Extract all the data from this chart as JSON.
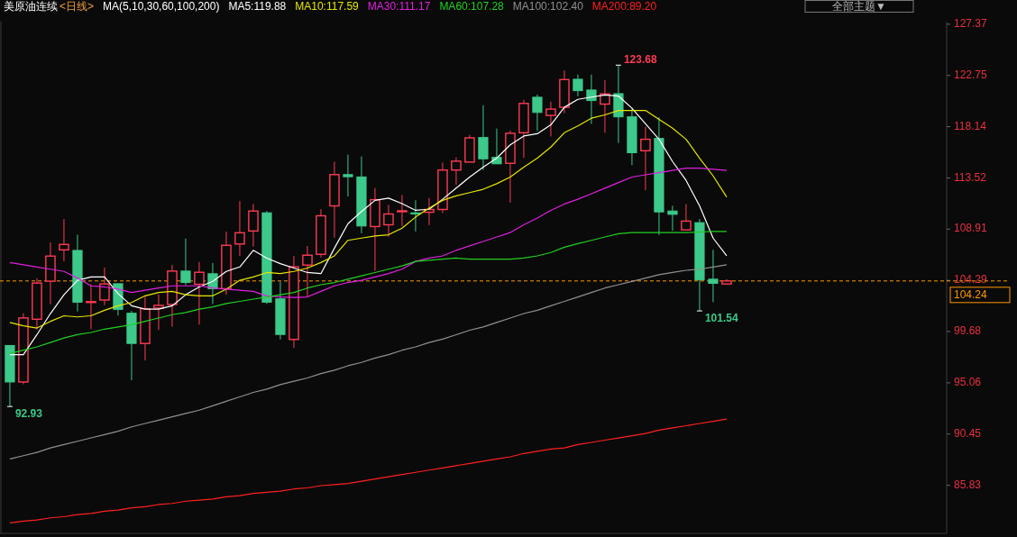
{
  "chart_data": {
    "type": "candlestick",
    "title": "美原油连续",
    "subtitle": "<日线>",
    "legend_title": "MA(5,10,30,60,100,200)",
    "legend": "top",
    "categories": [
      null,
      null,
      null,
      null,
      null,
      null,
      null,
      null,
      null,
      null,
      null,
      null,
      null,
      null,
      null,
      null,
      null,
      null,
      null,
      null,
      null,
      null,
      null,
      null,
      null,
      null,
      null,
      null,
      null,
      null,
      null,
      null,
      null,
      null,
      null,
      null,
      null,
      null,
      null,
      null,
      null,
      null,
      null,
      null,
      null,
      null,
      null,
      null,
      null,
      null,
      null,
      null,
      null,
      null
    ],
    "ohlc": [
      [
        98.43,
        98.5,
        92.93,
        95.14
      ],
      [
        95.14,
        101.33,
        94.93,
        100.91
      ],
      [
        100.79,
        104.48,
        99.86,
        104.05
      ],
      [
        104.22,
        107.71,
        102.14,
        106.48
      ],
      [
        107.04,
        109.81,
        106.02,
        107.53
      ],
      [
        106.99,
        108.41,
        101.49,
        102.33
      ],
      [
        102.36,
        103.94,
        99.9,
        102.38
      ],
      [
        102.52,
        105.45,
        102.06,
        103.97
      ],
      [
        103.99,
        104.0,
        101.12,
        101.68
      ],
      [
        101.33,
        101.55,
        95.3,
        98.61
      ],
      [
        98.61,
        102.81,
        97.08,
        101.74
      ],
      [
        101.79,
        103.03,
        99.82,
        102.04
      ],
      [
        102.12,
        105.69,
        100.12,
        105.13
      ],
      [
        105.13,
        108.06,
        103.86,
        104.1
      ],
      [
        103.94,
        105.96,
        100.31,
        105.02
      ],
      [
        104.89,
        105.85,
        102.16,
        103.54
      ],
      [
        103.54,
        108.68,
        103.0,
        107.45
      ],
      [
        107.57,
        111.43,
        106.5,
        108.58
      ],
      [
        108.74,
        111.18,
        107.33,
        110.54
      ],
      [
        110.38,
        110.54,
        102.16,
        102.33
      ],
      [
        102.63,
        104.16,
        98.97,
        99.42
      ],
      [
        98.97,
        106.5,
        98.21,
        105.51
      ],
      [
        105.67,
        107.39,
        102.79,
        106.56
      ],
      [
        106.64,
        110.7,
        106.36,
        110.11
      ],
      [
        111.0,
        114.98,
        108.14,
        113.82
      ],
      [
        113.82,
        115.62,
        111.85,
        113.63
      ],
      [
        113.61,
        115.46,
        108.54,
        109.19
      ],
      [
        109.14,
        112.61,
        105.15,
        111.56
      ],
      [
        109.3,
        111.1,
        108.22,
        110.27
      ],
      [
        110.51,
        111.99,
        109.19,
        110.56
      ],
      [
        110.38,
        111.51,
        108.7,
        110.27
      ],
      [
        110.43,
        111.72,
        109.27,
        110.68
      ],
      [
        110.68,
        114.9,
        110.35,
        114.23
      ],
      [
        114.23,
        115.38,
        112.9,
        115.03
      ],
      [
        114.95,
        117.4,
        114.95,
        117.13
      ],
      [
        117.16,
        120.07,
        114.23,
        115.24
      ],
      [
        115.38,
        117.97,
        114.68,
        114.79
      ],
      [
        114.84,
        117.8,
        111.29,
        117.54
      ],
      [
        117.59,
        120.55,
        115.33,
        120.23
      ],
      [
        120.79,
        121.03,
        117.75,
        119.42
      ],
      [
        119.15,
        120.39,
        117.26,
        119.72
      ],
      [
        119.88,
        123.21,
        119.36,
        122.38
      ],
      [
        122.41,
        122.83,
        120.87,
        121.38
      ],
      [
        121.44,
        122.83,
        118.39,
        120.49
      ],
      [
        120.17,
        122.33,
        117.59,
        121.09
      ],
      [
        121.11,
        123.68,
        116.67,
        119.02
      ],
      [
        119.02,
        119.72,
        114.68,
        115.79
      ],
      [
        115.97,
        118.13,
        112.42,
        117.0
      ],
      [
        117.08,
        118.99,
        108.38,
        110.46
      ],
      [
        110.54,
        111.02,
        108.76,
        110.24
      ],
      [
        108.84,
        111.18,
        108.84,
        109.63
      ],
      [
        109.49,
        109.81,
        101.54,
        104.34
      ],
      [
        104.4,
        107.04,
        102.33,
        104.02
      ],
      [
        103.97,
        104.4,
        103.97,
        104.24
      ]
    ],
    "series": [
      {
        "name": "MA5:119.88",
        "type": "line",
        "color": "#ffffff",
        "values": [
          97.6,
          97.6,
          99.4,
          101.3,
          103.0,
          104.3,
          104.6,
          104.6,
          103.1,
          102.0,
          101.7,
          101.7,
          102.0,
          103.0,
          103.7,
          104.2,
          105.1,
          105.5,
          107.0,
          106.3,
          105.8,
          105.4,
          105.0,
          104.9,
          107.2,
          109.4,
          110.5,
          111.5,
          111.7,
          111.2,
          110.6,
          110.7,
          111.6,
          112.6,
          113.6,
          114.5,
          115.3,
          116.5,
          117.3,
          117.5,
          118.3,
          119.88,
          120.6,
          120.8,
          121.0,
          120.9,
          119.8,
          118.4,
          117.0,
          115.0,
          113.3,
          111.0,
          108.1,
          106.5
        ]
      },
      {
        "name": "MA10:117.59",
        "type": "line",
        "color": "#e6e600",
        "values": [
          100.5,
          100.2,
          100.0,
          100.6,
          101.1,
          101.0,
          101.1,
          101.6,
          102.0,
          102.3,
          102.9,
          103.2,
          103.3,
          103.0,
          102.9,
          102.9,
          103.5,
          104.3,
          104.6,
          105.0,
          104.9,
          105.1,
          105.4,
          105.9,
          106.5,
          107.9,
          108.1,
          108.3,
          108.4,
          109.0,
          110.0,
          110.8,
          111.5,
          111.9,
          112.2,
          112.5,
          113.0,
          113.6,
          114.5,
          115.3,
          116.3,
          117.59,
          118.2,
          118.9,
          119.2,
          119.6,
          119.6,
          119.6,
          118.8,
          118.0,
          117.0,
          115.3,
          113.7,
          111.8
        ]
      },
      {
        "name": "MA30:111.17",
        "type": "line",
        "color": "#e020e0",
        "values": [
          105.9,
          105.7,
          105.5,
          105.3,
          105.1,
          104.5,
          103.8,
          103.7,
          103.5,
          103.2,
          103.4,
          103.6,
          103.8,
          103.8,
          103.8,
          103.6,
          103.5,
          103.4,
          103.3,
          102.9,
          102.8,
          102.75,
          102.8,
          103.3,
          103.8,
          104.1,
          104.3,
          104.6,
          104.9,
          105.3,
          106.0,
          106.3,
          106.5,
          107.0,
          107.4,
          107.8,
          108.2,
          108.6,
          109.3,
          109.9,
          110.6,
          111.17,
          111.6,
          112.1,
          112.6,
          113.1,
          113.6,
          113.8,
          114.0,
          114.2,
          114.4,
          114.4,
          114.3,
          114.2
        ]
      },
      {
        "name": "MA60:107.28",
        "type": "line",
        "color": "#20d020",
        "values": [
          97.7,
          98.0,
          98.3,
          98.7,
          99.1,
          99.4,
          99.6,
          99.9,
          100.1,
          100.3,
          100.6,
          100.9,
          101.2,
          101.4,
          101.7,
          101.9,
          102.2,
          102.4,
          102.6,
          102.8,
          103.0,
          103.2,
          103.6,
          103.9,
          104.1,
          104.4,
          104.7,
          105.0,
          105.3,
          105.6,
          106.0,
          106.1,
          106.2,
          106.3,
          106.2,
          106.2,
          106.2,
          106.2,
          106.3,
          106.5,
          106.8,
          107.28,
          107.6,
          107.9,
          108.2,
          108.5,
          108.6,
          108.6,
          108.6,
          108.6,
          108.6,
          108.65,
          108.7,
          108.7
        ]
      },
      {
        "name": "MA100:102.40",
        "type": "line",
        "color": "#909090",
        "values": [
          88.2,
          88.5,
          88.8,
          89.2,
          89.5,
          89.8,
          90.1,
          90.4,
          90.7,
          91.1,
          91.4,
          91.7,
          92.0,
          92.3,
          92.6,
          93.0,
          93.4,
          93.8,
          94.2,
          94.5,
          94.9,
          95.2,
          95.5,
          95.9,
          96.2,
          96.6,
          96.9,
          97.3,
          97.6,
          98.0,
          98.3,
          98.7,
          99.0,
          99.4,
          99.8,
          100.1,
          100.5,
          100.9,
          101.3,
          101.6,
          102.0,
          102.4,
          102.8,
          103.2,
          103.6,
          103.9,
          104.2,
          104.5,
          104.8,
          105.0,
          105.2,
          105.3,
          105.5,
          105.7
        ]
      },
      {
        "name": "MA200:89.20",
        "type": "line",
        "color": "#ff2020",
        "values": [
          82.45,
          82.6,
          82.7,
          82.9,
          83.0,
          83.2,
          83.3,
          83.5,
          83.6,
          83.8,
          83.9,
          84.1,
          84.2,
          84.4,
          84.5,
          84.6,
          84.8,
          84.9,
          85.1,
          85.2,
          85.3,
          85.5,
          85.6,
          85.8,
          85.9,
          86.0,
          86.2,
          86.4,
          86.6,
          86.8,
          87.0,
          87.2,
          87.4,
          87.6,
          87.8,
          88.0,
          88.2,
          88.4,
          88.7,
          88.9,
          89.1,
          89.2,
          89.5,
          89.7,
          89.9,
          90.1,
          90.3,
          90.5,
          90.8,
          91.0,
          91.2,
          91.4,
          91.6,
          91.8
        ]
      }
    ],
    "ylim": [
      81.5,
      127.6
    ],
    "yticks": [
      85.83,
      90.45,
      95.06,
      99.68,
      104.29,
      108.91,
      113.52,
      118.14,
      122.75,
      127.37
    ],
    "ref_lines": [
      {
        "axis": "y",
        "value": 104.24,
        "label": "104.24",
        "color": "#ff9900",
        "line_style": "dashed"
      }
    ],
    "annotations": [
      "123.68",
      "92.93",
      "101.54",
      "全部主题▼"
    ]
  }
}
